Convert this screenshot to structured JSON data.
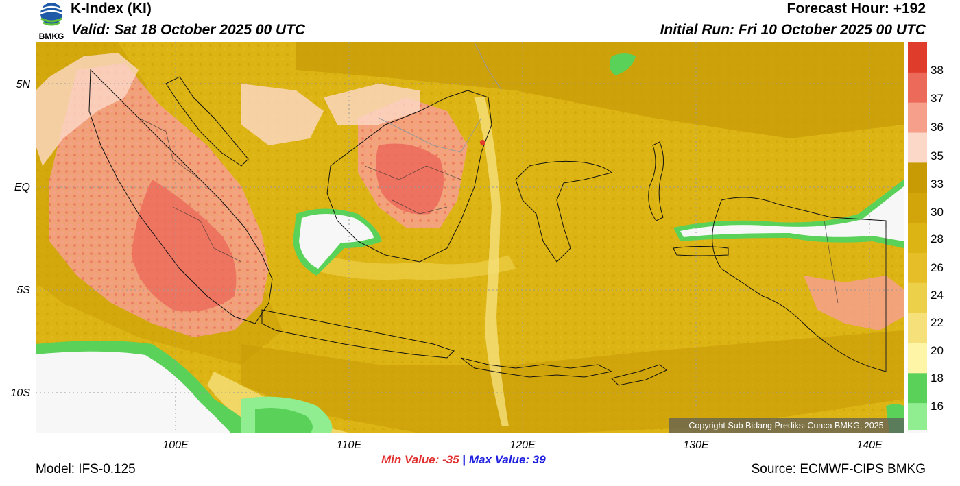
{
  "header": {
    "title": "K-Index (KI)",
    "valid": "Valid: Sat 18 October 2025 00 UTC",
    "forecast_hour": "Forecast Hour: +192",
    "initial_run": "Initial Run: Fri 10 October 2025 00 UTC",
    "logo_text": "BMKG"
  },
  "colors": {
    "green_light": "#90ee90",
    "green": "#5ad25a",
    "green_dark": "#3cc83c",
    "yellow_pale": "#fff5a6",
    "yellow_light": "#f5e07a",
    "gold_light": "#edd049",
    "gold": "#e6be28",
    "gold_mid": "#dcb414",
    "mustard": "#d2a50a",
    "olive": "#c89b05",
    "pink_pale": "#fcd8c8",
    "salmon": "#f6a08c",
    "red_light": "#ec6a5a",
    "red": "#e03c2c",
    "empty": "#f7f7f7"
  },
  "map": {
    "lat_labels": [
      "5N",
      "EQ",
      "5S",
      "10S"
    ],
    "lon_labels": [
      "100E",
      "110E",
      "120E",
      "130E",
      "140E"
    ],
    "copyright": "Copyright Sub Bidang Prediksi Cuaca BMKG, 2025"
  },
  "colorbar": {
    "labels": [
      "38",
      "37",
      "36",
      "35",
      "33",
      "30",
      "28",
      "26",
      "24",
      "22",
      "20",
      "18",
      "16"
    ],
    "fills": [
      "#e03c2c",
      "#ec6a5a",
      "#f6a08c",
      "#fcd8c8",
      "#c89b05",
      "#d2a50a",
      "#dcb414",
      "#e6be28",
      "#edd049",
      "#f5e07a",
      "#fff5a6",
      "#5ad25a",
      "#90ee90"
    ]
  },
  "footer": {
    "min_label": "Min Value: -35",
    "max_label": "Max Value:  39",
    "separator": "|",
    "model": "Model: IFS-0.125",
    "source": "Source: ECMWF-CIPS BMKG"
  }
}
